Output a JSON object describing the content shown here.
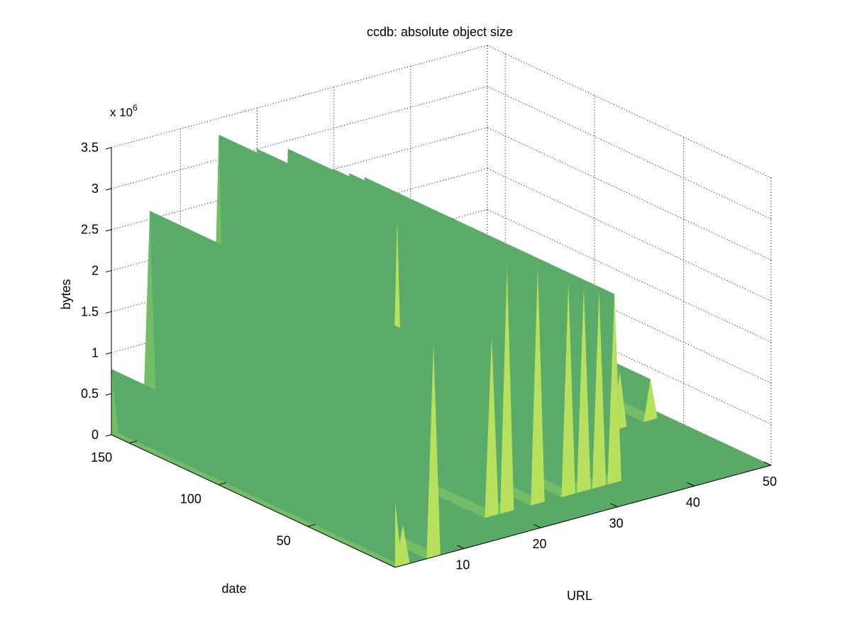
{
  "chart_data": {
    "type": "surface",
    "title": "ccdb: absolute object size",
    "xlabel": "URL",
    "ylabel": "date",
    "zlabel": "bytes",
    "z_exponent_label": "x 10",
    "z_exponent_power": "6",
    "xlim": [
      1,
      50
    ],
    "ylim": [
      1,
      160
    ],
    "zlim": [
      0,
      3.5
    ],
    "x_ticks": [
      "10",
      "20",
      "30",
      "40",
      "50"
    ],
    "y_ticks": [
      "50",
      "100",
      "150"
    ],
    "z_ticks": [
      "0",
      "0.5",
      "1",
      "1.5",
      "2",
      "2.5",
      "3",
      "3.5"
    ],
    "grid": true,
    "colormap": "green-yellow (summer)",
    "peak_colors": {
      "low": "#5aab6a",
      "mid": "#72bd66",
      "high": "#b7e05c"
    },
    "ridges": [
      {
        "url": 1,
        "date_start": 1,
        "date_end": 160,
        "bytes_millions": 0.8
      },
      {
        "url": 2,
        "date_start": 1,
        "date_end": 160,
        "bytes_millions": 0.5
      },
      {
        "url": 6,
        "date_start": 1,
        "date_end": 160,
        "bytes_millions": 2.6
      },
      {
        "url": 10,
        "date_start": 60,
        "date_end": 160,
        "bytes_millions": 2.0
      },
      {
        "url": 14,
        "date_start": 60,
        "date_end": 160,
        "bytes_millions": 1.8
      },
      {
        "url": 15,
        "date_start": 60,
        "date_end": 160,
        "bytes_millions": 3.3
      },
      {
        "url": 18,
        "date_start": 20,
        "date_end": 160,
        "bytes_millions": 2.2
      },
      {
        "url": 20,
        "date_start": 20,
        "date_end": 160,
        "bytes_millions": 3.0
      },
      {
        "url": 24,
        "date_start": 20,
        "date_end": 160,
        "bytes_millions": 2.9
      },
      {
        "url": 28,
        "date_start": 20,
        "date_end": 160,
        "bytes_millions": 2.6
      },
      {
        "url": 30,
        "date_start": 20,
        "date_end": 160,
        "bytes_millions": 2.5
      },
      {
        "url": 32,
        "date_start": 20,
        "date_end": 160,
        "bytes_millions": 2.4
      },
      {
        "url": 34,
        "date_start": 20,
        "date_end": 160,
        "bytes_millions": 2.3
      },
      {
        "url": 36,
        "date_start": 60,
        "date_end": 160,
        "bytes_millions": 1.0
      },
      {
        "url": 40,
        "date_start": 60,
        "date_end": 160,
        "bytes_millions": 0.8
      },
      {
        "url": 44,
        "date_start": 60,
        "date_end": 160,
        "bytes_millions": 0.7
      },
      {
        "url": 48,
        "date_start": 60,
        "date_end": 160,
        "bytes_millions": 0.5
      }
    ]
  }
}
